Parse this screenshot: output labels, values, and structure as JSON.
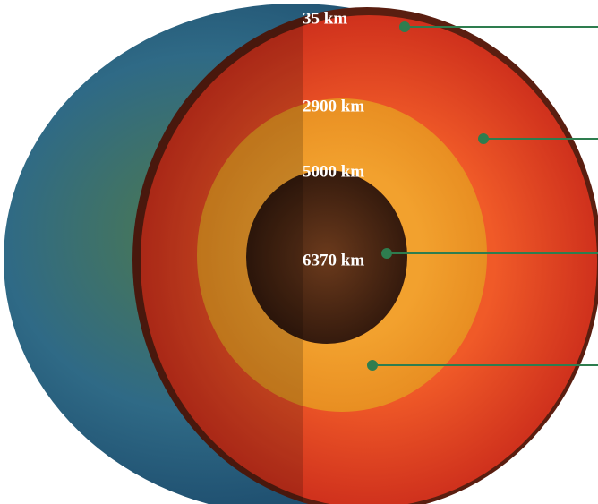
{
  "labels": [
    "35 km",
    "2900 km",
    "5000 km",
    "6370 km"
  ]
}
